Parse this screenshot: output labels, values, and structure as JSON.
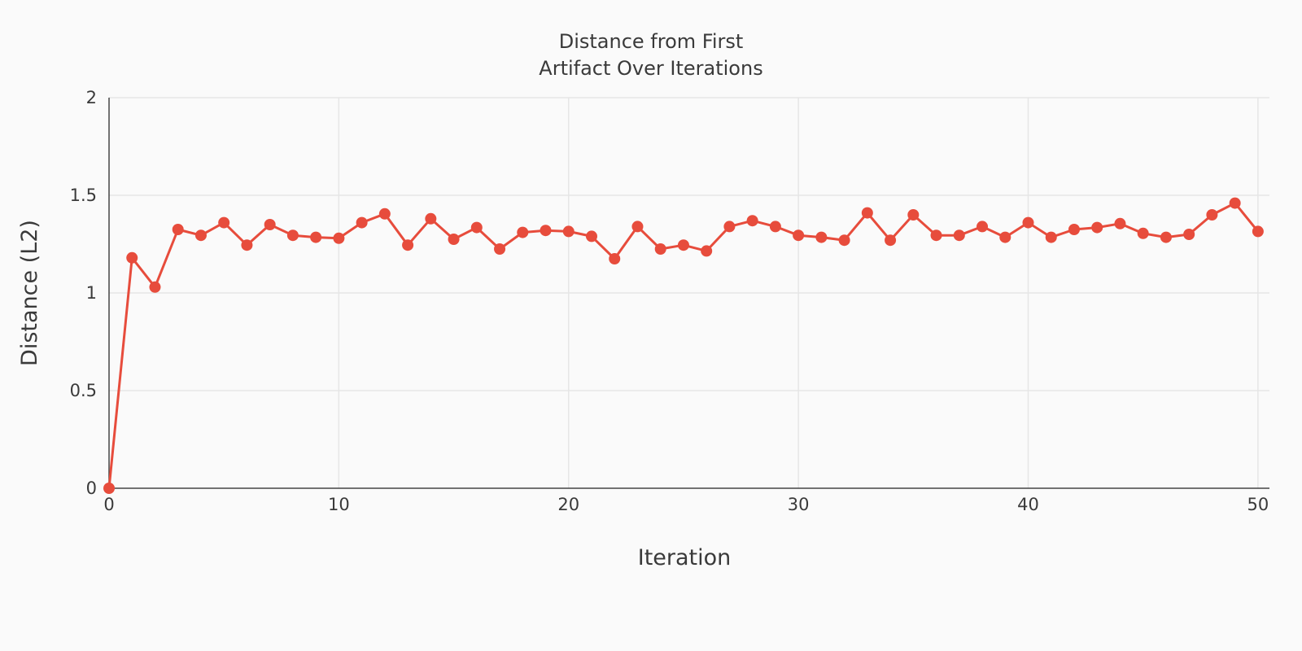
{
  "chart_data": {
    "type": "line",
    "title_lines": [
      "Distance from First",
      "Artifact Over Iterations"
    ],
    "xlabel": "Iteration",
    "ylabel": "Distance (L2)",
    "xlim": [
      0,
      50.5
    ],
    "ylim": [
      0,
      2
    ],
    "x_ticks": [
      0,
      10,
      20,
      30,
      40,
      50
    ],
    "y_ticks": [
      0,
      0.5,
      1,
      1.5,
      2
    ],
    "x_tick_labels": [
      "0",
      "10",
      "20",
      "30",
      "40",
      "50"
    ],
    "y_tick_labels": [
      "0",
      "0.5",
      "1",
      "1.5",
      "2"
    ],
    "grid": true,
    "legend": "none",
    "series": [
      {
        "color": "#e74c3c",
        "x": [
          0,
          1,
          2,
          3,
          4,
          5,
          6,
          7,
          8,
          9,
          10,
          11,
          12,
          13,
          14,
          15,
          16,
          17,
          18,
          19,
          20,
          21,
          22,
          23,
          24,
          25,
          26,
          27,
          28,
          29,
          30,
          31,
          32,
          33,
          34,
          35,
          36,
          37,
          38,
          39,
          40,
          41,
          42,
          43,
          44,
          45,
          46,
          47,
          48,
          49,
          50
        ],
        "y": [
          0,
          1.18,
          1.03,
          1.325,
          1.295,
          1.36,
          1.245,
          1.35,
          1.295,
          1.285,
          1.28,
          1.36,
          1.405,
          1.245,
          1.38,
          1.275,
          1.335,
          1.225,
          1.31,
          1.32,
          1.315,
          1.29,
          1.175,
          1.34,
          1.225,
          1.245,
          1.215,
          1.34,
          1.37,
          1.34,
          1.295,
          1.285,
          1.27,
          1.41,
          1.27,
          1.4,
          1.295,
          1.295,
          1.34,
          1.285,
          1.36,
          1.285,
          1.325,
          1.335,
          1.355,
          1.305,
          1.285,
          1.3,
          1.4,
          1.46,
          1.315
        ]
      }
    ]
  }
}
